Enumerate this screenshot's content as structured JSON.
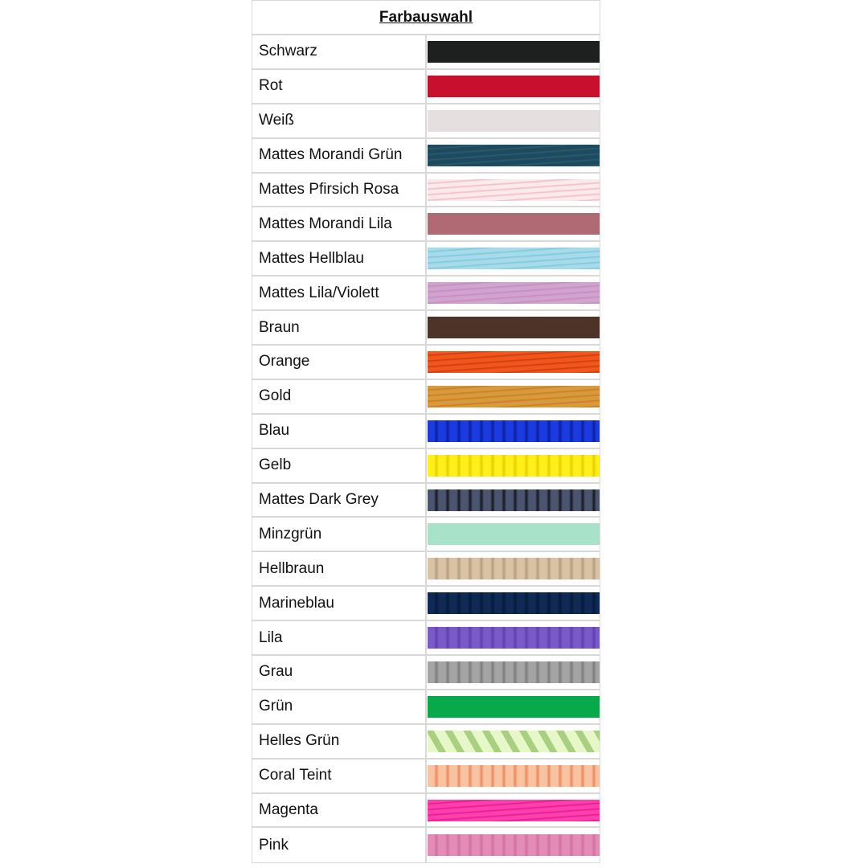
{
  "title": "Farbauswahl",
  "colors": [
    {
      "name": "Schwarz",
      "hex": "#1e1f1f",
      "hex2": "#1e1f1f",
      "pattern": "solid"
    },
    {
      "name": "Rot",
      "hex": "#c8102e",
      "hex2": "#c8102e",
      "pattern": "solid"
    },
    {
      "name": "Weiß",
      "hex": "#e6dfe0",
      "hex2": "#e6dfe0",
      "pattern": "solid"
    },
    {
      "name": "Mattes Morandi Grün",
      "hex": "#1c4a5e",
      "hex2": "#2e5d70",
      "pattern": "wave"
    },
    {
      "name": "Mattes Pfirsich Rosa",
      "hex": "#fbe9ec",
      "hex2": "#f2b8c2",
      "pattern": "wave"
    },
    {
      "name": "Mattes Morandi Lila",
      "hex": "#b06a74",
      "hex2": "#a8626c",
      "pattern": "solid"
    },
    {
      "name": "Mattes Hellblau",
      "hex": "#a7dbea",
      "hex2": "#7cc6de",
      "pattern": "wave"
    },
    {
      "name": "Mattes Lila/Violett",
      "hex": "#d2a3cf",
      "hex2": "#c18cbf",
      "pattern": "wave"
    },
    {
      "name": "Braun",
      "hex": "#4e3328",
      "hex2": "#4e3328",
      "pattern": "solid"
    },
    {
      "name": "Orange",
      "hex": "#f2561d",
      "hex2": "#c53d0c",
      "pattern": "wave"
    },
    {
      "name": "Gold",
      "hex": "#d89a3c",
      "hex2": "#c77d20",
      "pattern": "wave"
    },
    {
      "name": "Blau",
      "hex": "#1b3be0",
      "hex2": "#0a1f9a",
      "pattern": "vstripes"
    },
    {
      "name": "Gelb",
      "hex": "#fff01a",
      "hex2": "#e6cf00",
      "pattern": "vstripes"
    },
    {
      "name": "Mattes Dark Grey",
      "hex": "#4b5570",
      "hex2": "#141820",
      "pattern": "vstripes"
    },
    {
      "name": "Minzgrün",
      "hex": "#a8e2c8",
      "hex2": "#a8e2c8",
      "pattern": "solid"
    },
    {
      "name": "Hellbraun",
      "hex": "#d9c3a4",
      "hex2": "#b69c7c",
      "pattern": "vstripes"
    },
    {
      "name": "Marineblau",
      "hex": "#0e2a55",
      "hex2": "#061a38",
      "pattern": "vstripes"
    },
    {
      "name": "Lila",
      "hex": "#7a5ac8",
      "hex2": "#5f3fae",
      "pattern": "vstripes"
    },
    {
      "name": "Grau",
      "hex": "#a4a4a4",
      "hex2": "#7b7b7b",
      "pattern": "vstripes"
    },
    {
      "name": "Grün",
      "hex": "#07a94a",
      "hex2": "#07a94a",
      "pattern": "solid"
    },
    {
      "name": "Helles Grün",
      "hex": "#e6f7c8",
      "hex2": "#a9d080",
      "pattern": "diagonal"
    },
    {
      "name": "Coral Teint",
      "hex": "#f9c3a2",
      "hex2": "#e98a5c",
      "pattern": "vstripes"
    },
    {
      "name": "Magenta",
      "hex": "#ff3fae",
      "hex2": "#e01a8e",
      "pattern": "wave"
    },
    {
      "name": "Pink",
      "hex": "#e48cb8",
      "hex2": "#d06fa0",
      "pattern": "vstripes"
    }
  ]
}
